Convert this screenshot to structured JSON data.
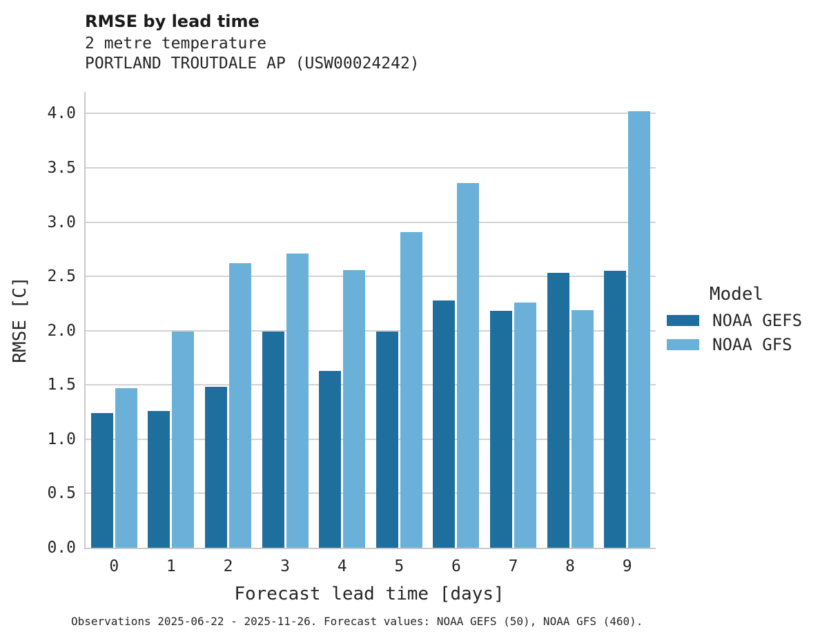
{
  "header": {
    "title": "RMSE by lead time",
    "subtitle_variable": "2 metre temperature",
    "subtitle_station": "PORTLAND TROUTDALE AP (USW00024242)"
  },
  "legend": {
    "title": "Model",
    "entries": [
      {
        "label": "NOAA GEFS",
        "color": "#1f6f9e"
      },
      {
        "label": "NOAA GFS",
        "color": "#6ab0d8"
      }
    ]
  },
  "caption": "Observations 2025-06-22 - 2025-11-26. Forecast values: NOAA GEFS (50), NOAA GFS (460).",
  "colors": {
    "noaa_gefs": "#1f6f9e",
    "noaa_gfs": "#6ab0d8",
    "gridline": "#d2d2d2",
    "spine": "#c9c9c9",
    "text": "#262626"
  },
  "chart_data": {
    "type": "bar",
    "title": "RMSE by lead time",
    "subtitle": [
      "2 metre temperature",
      "PORTLAND TROUTDALE AP (USW00024242)"
    ],
    "xlabel": "Forecast lead time [days]",
    "ylabel": "RMSE [C]",
    "categories": [
      0,
      1,
      2,
      3,
      4,
      5,
      6,
      7,
      8,
      9
    ],
    "series": [
      {
        "name": "NOAA GEFS",
        "color": "#1f6f9e",
        "values": [
          1.24,
          1.26,
          1.48,
          1.99,
          1.63,
          1.99,
          2.28,
          2.18,
          2.53,
          2.55
        ]
      },
      {
        "name": "NOAA GFS",
        "color": "#6ab0d8",
        "values": [
          1.47,
          1.99,
          2.62,
          2.71,
          2.56,
          2.91,
          3.36,
          2.26,
          2.19,
          4.02
        ]
      }
    ],
    "ylim": [
      0,
      4.2
    ],
    "yticks": [
      0.0,
      0.5,
      1.0,
      1.5,
      2.0,
      2.5,
      3.0,
      3.5,
      4.0
    ],
    "grid": true,
    "legend_title": "Model",
    "legend_position": "right"
  }
}
